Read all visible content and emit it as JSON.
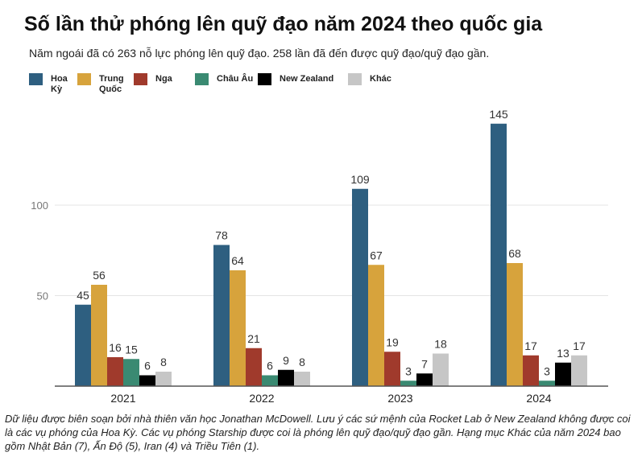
{
  "chart_data": {
    "type": "bar",
    "title": "Số lần thử phóng lên quỹ đạo năm 2024 theo quốc gia",
    "subtitle": "Năm ngoái đã có 263 nỗ lực phóng lên quỹ đạo. 258 lần đã đến được quỹ đạo/quỹ đạo gần.",
    "categories": [
      "2021",
      "2022",
      "2023",
      "2024"
    ],
    "series": [
      {
        "name": "Hoa Kỳ",
        "color": "#2e5f80",
        "values": [
          45,
          78,
          109,
          145
        ]
      },
      {
        "name": "Trung Quốc",
        "color": "#d7a33c",
        "values": [
          56,
          64,
          67,
          68
        ]
      },
      {
        "name": "Nga",
        "color": "#a03a2c",
        "values": [
          16,
          21,
          19,
          17
        ]
      },
      {
        "name": "Châu Âu",
        "color": "#3a8a72",
        "values": [
          15,
          6,
          3,
          3
        ]
      },
      {
        "name": "New Zealand",
        "color": "#000000",
        "values": [
          6,
          9,
          7,
          13
        ]
      },
      {
        "name": "Khác",
        "color": "#c6c6c6",
        "values": [
          8,
          8,
          18,
          17
        ]
      }
    ],
    "yticks": [
      "50",
      "100"
    ],
    "ylim": [
      0,
      160
    ],
    "xlabel": "",
    "ylabel": "",
    "grid": true,
    "legend": "top-left"
  },
  "caption": "Dữ liệu được biên soạn bởi nhà thiên văn học Jonathan McDowell. Lưu ý các sứ mệnh của Rocket Lab ở New Zealand không được coi là các vụ phóng của Hoa Kỳ. Các vụ phóng Starship được coi là phóng lên quỹ đạo/quỹ đạo gần. Hạng mục Khác của năm 2024 bao gồm Nhật Bản (7), Ấn Độ (5), Iran (4) và Triều Tiên (1)."
}
